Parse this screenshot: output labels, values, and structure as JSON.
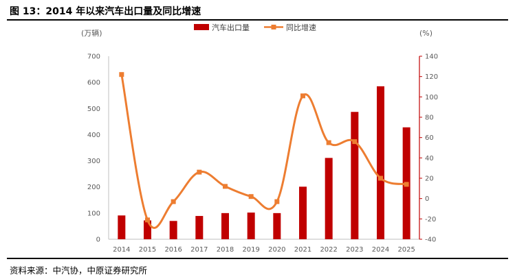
{
  "header": {
    "title": "图 13：2014 年以来汽车出口量及同比增速"
  },
  "footer": {
    "source": "资料来源：中汽协，中原证券研究所"
  },
  "colors": {
    "bar": "#c00000",
    "line": "#ed7d31",
    "right_axis": "#c00000"
  },
  "chart_data": {
    "type": "bar",
    "title": "2014 年以来汽车出口量及同比增速",
    "categories": [
      "2014",
      "2015",
      "2016",
      "2017",
      "2018",
      "2019",
      "2020",
      "2021",
      "2022",
      "2023",
      "2024",
      "2025"
    ],
    "series": [
      {
        "name": "汽车出口量",
        "type": "bar",
        "axis": "left",
        "values": [
          91,
          72,
          70,
          89,
          100,
          102,
          100,
          201,
          311,
          487,
          585,
          428
        ]
      },
      {
        "name": "同比增速",
        "type": "line",
        "axis": "right",
        "values": [
          122,
          -21,
          -3,
          26,
          12,
          2,
          -3,
          101,
          55,
          56,
          20,
          14
        ]
      }
    ],
    "y_left": {
      "label": "(万辆)",
      "ylim": [
        0,
        700
      ],
      "ticks": [
        "0",
        "100",
        "200",
        "300",
        "400",
        "500",
        "600",
        "700"
      ]
    },
    "y_right": {
      "label": "(%)",
      "ylim": [
        -40,
        140
      ],
      "ticks": [
        "-40",
        "-20",
        "0",
        "20",
        "40",
        "60",
        "80",
        "100",
        "120",
        "140"
      ]
    },
    "legend": {
      "position": "top-center",
      "entries": [
        "汽车出口量",
        "同比增速"
      ]
    }
  }
}
